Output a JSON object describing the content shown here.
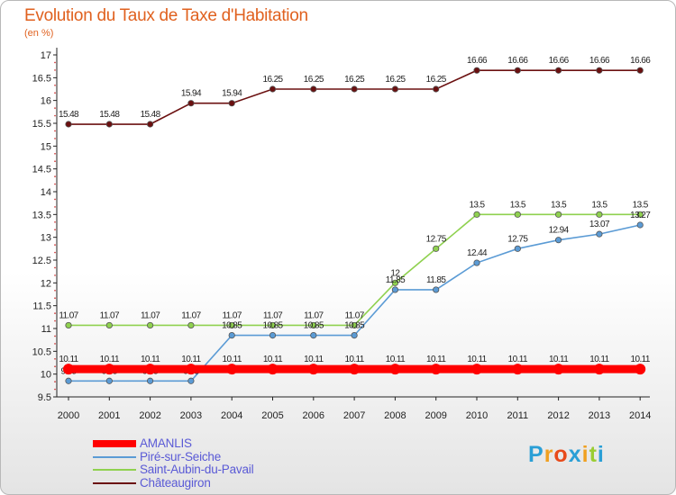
{
  "header": {
    "title": "Evolution du Taux de Taxe d'Habitation",
    "subtitle": "(en %)"
  },
  "logo": {
    "letters": [
      "P",
      "r",
      "o",
      "x",
      "i",
      "t",
      "i"
    ],
    "colors": [
      "#2a9fd6",
      "#f0a020",
      "#e84a1a",
      "#2a9fd6",
      "#f0a020",
      "#9acd32",
      "#2a9fd6"
    ]
  },
  "chart_data": {
    "type": "line",
    "title": "Evolution du Taux de Taxe d'Habitation",
    "ylabel": "(en %)",
    "xlabel": "",
    "ylim": [
      9.5,
      17
    ],
    "ytick_step": 0.5,
    "grid": false,
    "legend_position": "bottom-left",
    "x": [
      "2000",
      "2001",
      "2002",
      "2003",
      "2004",
      "2005",
      "2006",
      "2007",
      "2008",
      "2009",
      "2010",
      "2011",
      "2012",
      "2013",
      "2014"
    ],
    "series": [
      {
        "name": "Châteaugiron",
        "color": "#6b1010",
        "values": [
          15.48,
          15.48,
          15.48,
          15.94,
          15.94,
          16.25,
          16.25,
          16.25,
          16.25,
          16.25,
          16.66,
          16.66,
          16.66,
          16.66,
          16.66
        ],
        "labels": [
          "15.48",
          "15.48",
          "15.48",
          "15.94",
          "15.94",
          "16.25",
          "16.25",
          "16.25",
          "16.25",
          "16.25",
          "16.66",
          "16.66",
          "16.66",
          "16.66",
          "16.66"
        ]
      },
      {
        "name": "Saint-Aubin-du-Pavail",
        "color": "#8fd14f",
        "values": [
          11.07,
          11.07,
          11.07,
          11.07,
          11.07,
          11.07,
          11.07,
          11.07,
          12,
          12.75,
          13.5,
          13.5,
          13.5,
          13.5,
          13.5
        ],
        "labels": [
          "11.07",
          "11.07",
          "11.07",
          "11.07",
          "11.07",
          "11.07",
          "11.07",
          "11.07",
          "12",
          "12.75",
          "13.5",
          "13.5",
          "13.5",
          "13.5",
          "13.5"
        ]
      },
      {
        "name": "Piré-sur-Seiche",
        "color": "#5b9bd5",
        "values": [
          9.85,
          9.85,
          9.85,
          9.85,
          10.85,
          10.85,
          10.85,
          10.85,
          11.85,
          11.85,
          12.44,
          12.75,
          12.94,
          13.07,
          13.27
        ],
        "labels": [
          "9.85",
          "9.85",
          "9.85",
          "9.85",
          "10.85",
          "10.85",
          "10.85",
          "10.85",
          "11.85",
          "11.85",
          "12.44",
          "12.75",
          "12.94",
          "13.07",
          "13.27"
        ]
      },
      {
        "name": "AMANLIS",
        "color": "#ff0000",
        "values": [
          10.11,
          10.11,
          10.11,
          10.11,
          10.11,
          10.11,
          10.11,
          10.11,
          10.11,
          10.11,
          10.11,
          10.11,
          10.11,
          10.11,
          10.11
        ],
        "labels": [
          "10.11",
          "10.11",
          "10.11",
          "10.11",
          "10.11",
          "10.11",
          "10.11",
          "10.11",
          "10.11",
          "10.11",
          "10.11",
          "10.11",
          "10.11",
          "10.11",
          "10.11"
        ]
      }
    ],
    "legend_order": [
      "AMANLIS",
      "Piré-sur-Seiche",
      "Saint-Aubin-du-Pavail",
      "Châteaugiron"
    ]
  }
}
